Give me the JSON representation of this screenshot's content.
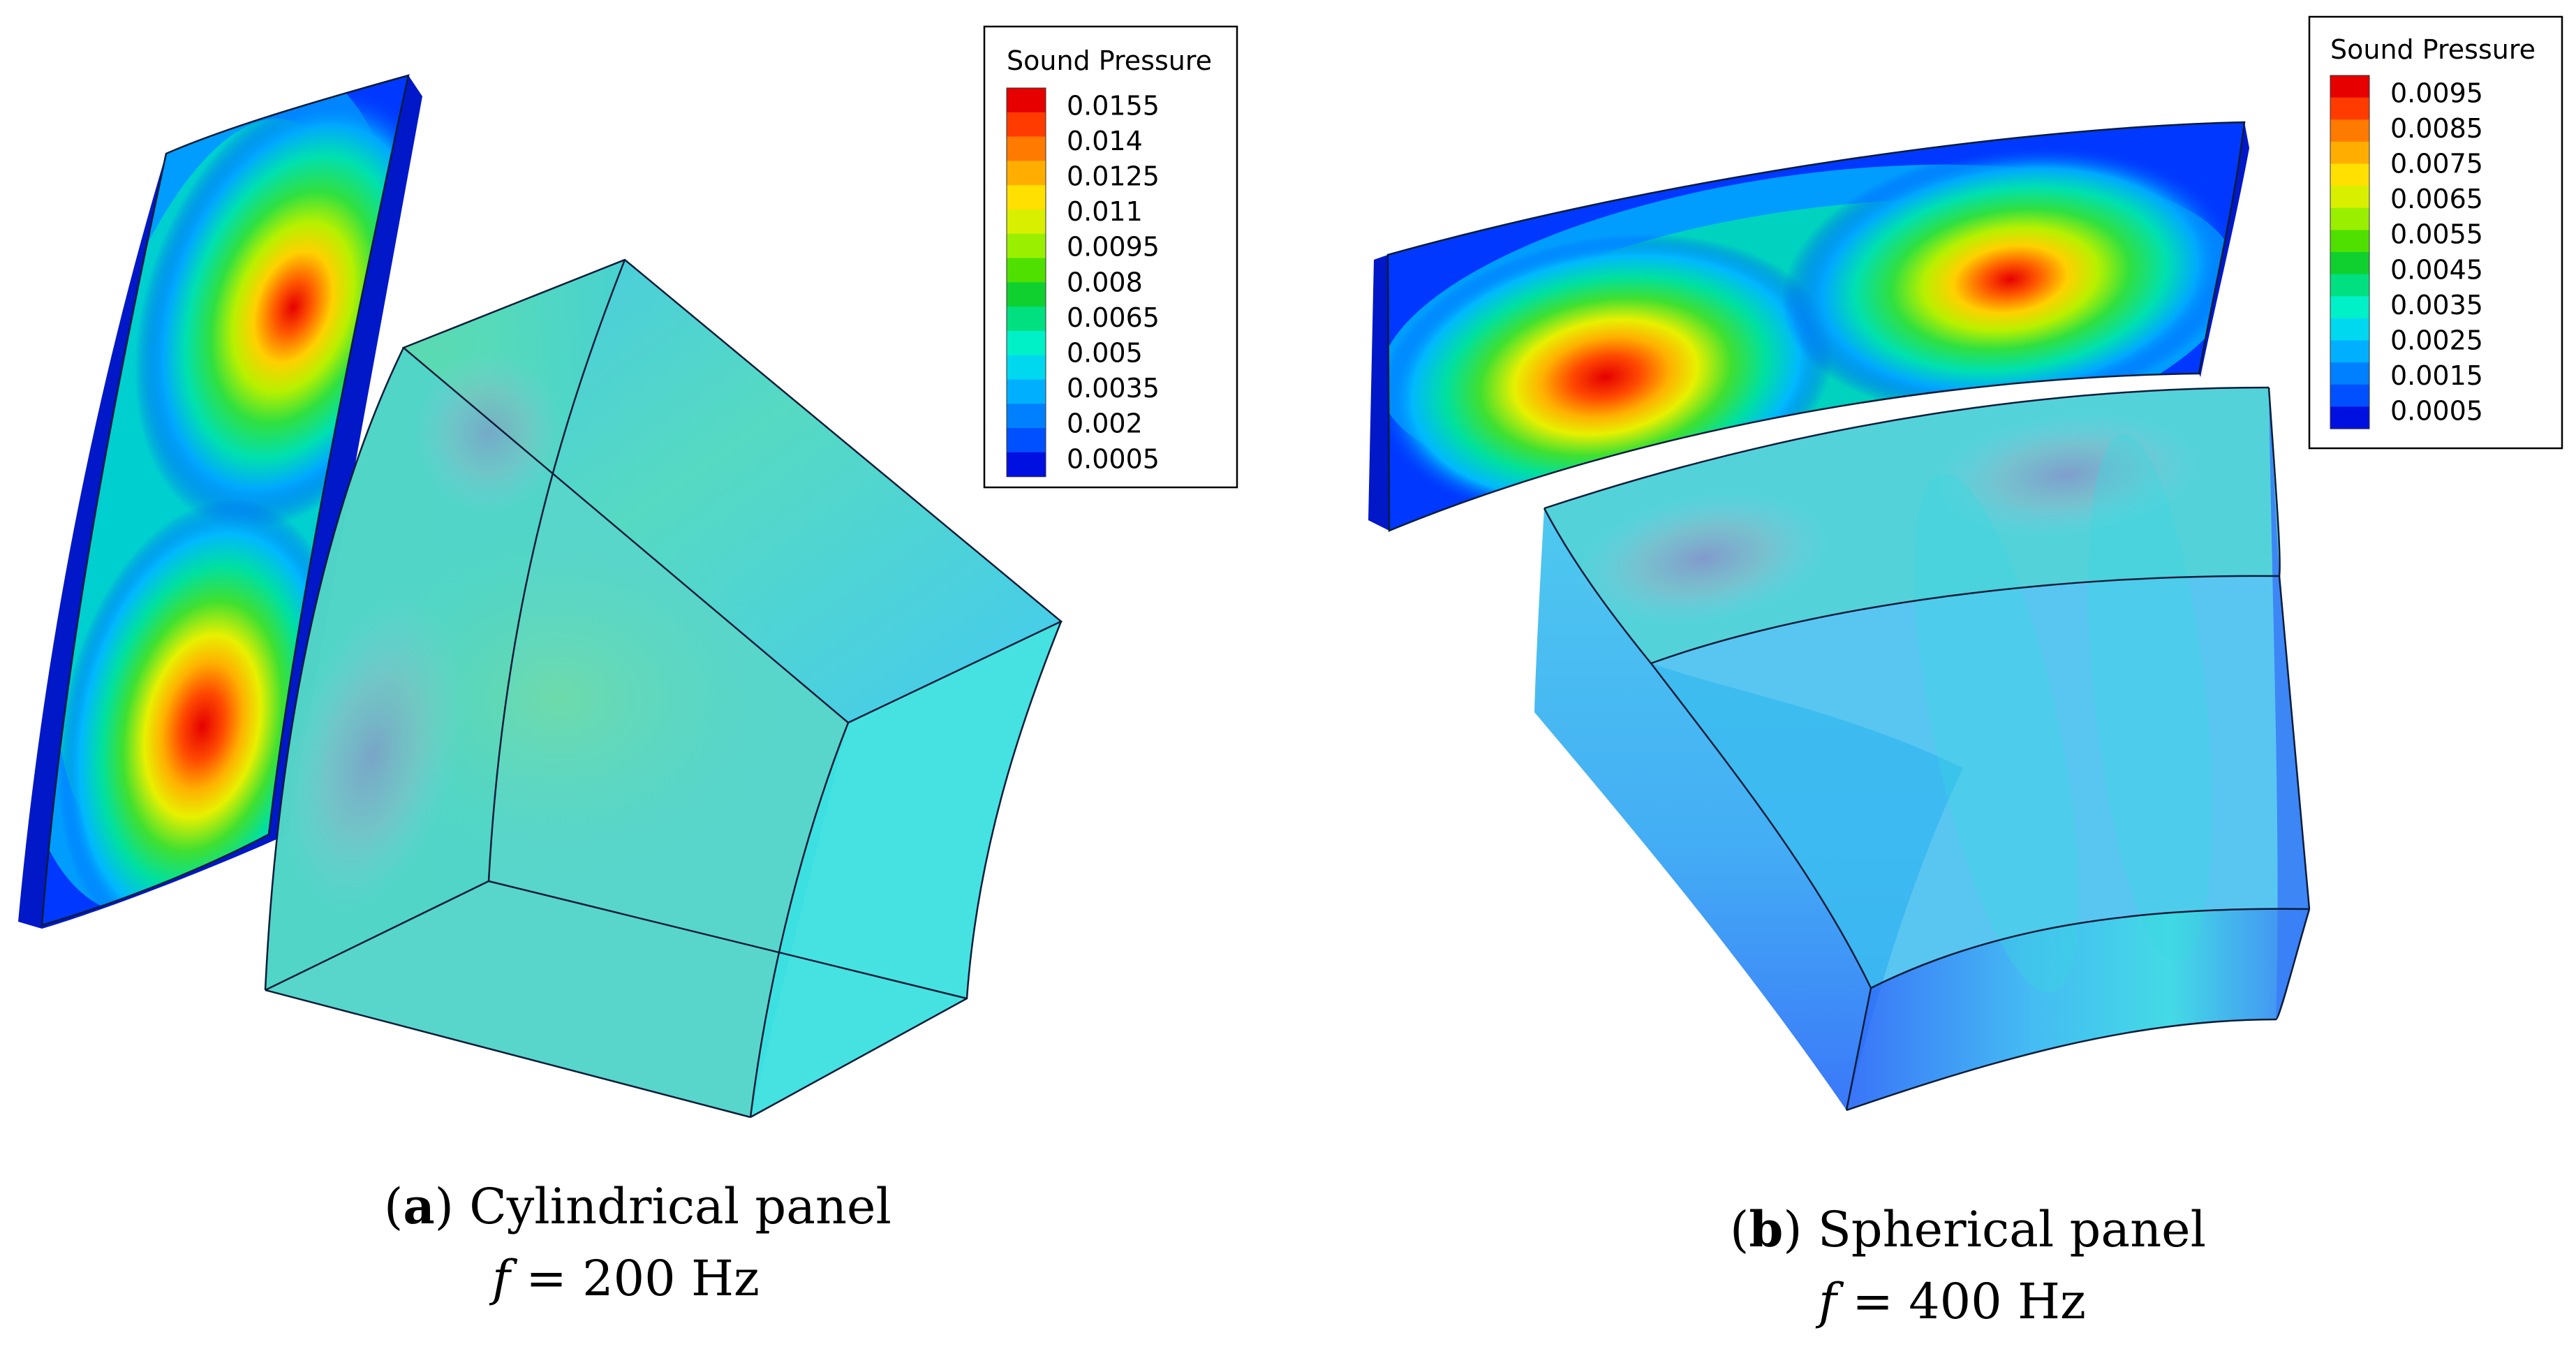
{
  "figure": {
    "panel_a": {
      "legend": {
        "title": "Sound Pressure",
        "values": [
          "0.0155",
          "0.014",
          "0.0125",
          "0.011",
          "0.0095",
          "0.008",
          "0.0065",
          "0.005",
          "0.0035",
          "0.002",
          "0.0005"
        ]
      },
      "caption": {
        "letter": "a",
        "title": "Cylindrical panel",
        "freq_symbol": "f",
        "freq_value": "= 200 Hz"
      }
    },
    "panel_b": {
      "legend": {
        "title": "Sound Pressure",
        "values": [
          "0.0095",
          "0.0085",
          "0.0075",
          "0.0065",
          "0.0055",
          "0.0045",
          "0.0035",
          "0.0025",
          "0.0015",
          "0.0005"
        ]
      },
      "caption": {
        "letter": "b",
        "title": "Spherical panel",
        "freq_symbol": "f",
        "freq_value": "= 400 Hz"
      }
    }
  },
  "colors": {
    "colormap": [
      "#e60000",
      "#ff3b00",
      "#ff7a00",
      "#ffae00",
      "#ffe000",
      "#d8f000",
      "#9aef00",
      "#4fe000",
      "#10d030",
      "#00e080",
      "#00f0c8",
      "#00d8f0",
      "#00b0ff",
      "#0080ff",
      "#0050ff",
      "#0010e0"
    ],
    "edge": "#0b1d3a",
    "background": "#ffffff"
  }
}
